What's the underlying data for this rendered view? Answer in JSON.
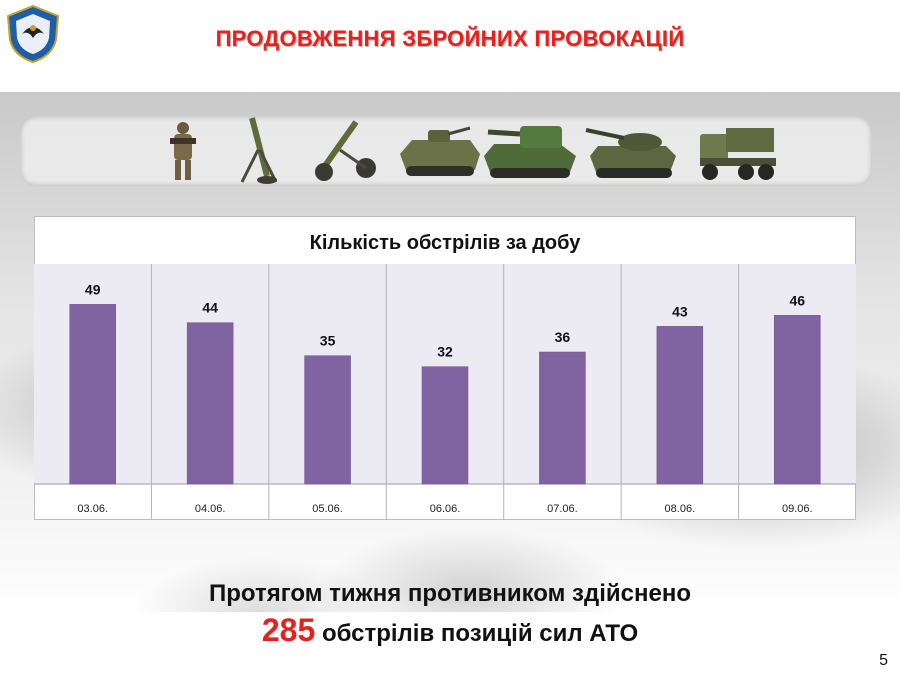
{
  "slide": {
    "title": "ПРОДОВЖЕННЯ ЗБРОЙНИХ ПРОВОКАЦІЙ",
    "summary_line1": "Протягом тижня противником здійснено",
    "summary_number": "285",
    "summary_line2_rest": "обстрілів позицій сил АТО",
    "page_number": "5"
  },
  "equipment_icons": [
    "soldier-icon",
    "mortar-icon",
    "howitzer-icon",
    "apc-icon",
    "self-propelled-gun-icon",
    "tank-icon",
    "rocket-launcher-truck-icon"
  ],
  "colors": {
    "title": "#e8211c",
    "bar": "#8064a2",
    "plot_bg": "#eceaf3",
    "accent_number": "#e8211c"
  },
  "chart_data": {
    "type": "bar",
    "title": "Кількість обстрілів за добу",
    "categories": [
      "03.06.",
      "04.06.",
      "05.06.",
      "06.06.",
      "07.06.",
      "08.06.",
      "09.06."
    ],
    "values": [
      49,
      44,
      35,
      32,
      36,
      43,
      46
    ],
    "ylim": [
      0,
      60
    ],
    "grid": "vertical category separators",
    "legend": "none",
    "data_labels": true
  }
}
